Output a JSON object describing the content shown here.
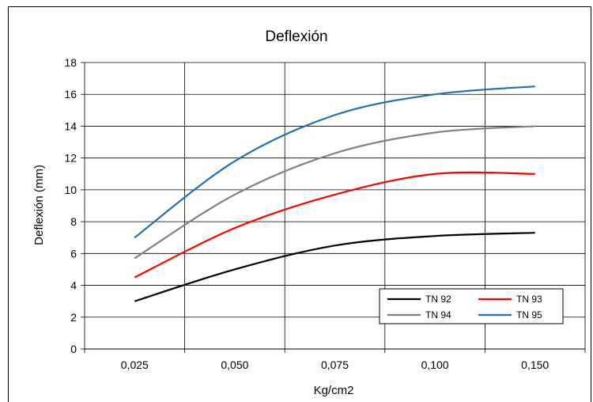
{
  "chart_data": {
    "type": "line",
    "title": "Deflexión",
    "xlabel": "Kg/cm2",
    "ylabel": "Deflexión (mm)",
    "x_ticks": [
      "0,025",
      "0,050",
      "0,075",
      "0,100",
      "0,150"
    ],
    "ylim": [
      0,
      18
    ],
    "y_ticks": [
      "0",
      "2",
      "4",
      "6",
      "8",
      "10",
      "12",
      "14",
      "16",
      "18"
    ],
    "grid": true,
    "legend_position": "bottom-right",
    "series": [
      {
        "name": "TN 92",
        "color": "#000000",
        "x": [
          "0,025",
          "0,050",
          "0,075",
          "0,100",
          "0,150"
        ],
        "values": [
          3.0,
          5.0,
          6.5,
          7.1,
          7.3
        ]
      },
      {
        "name": "TN 93",
        "color": "#ff0000",
        "x": [
          "0,025",
          "0,050",
          "0,075",
          "0,100",
          "0,150"
        ],
        "values": [
          4.5,
          7.6,
          9.7,
          11.0,
          11.0
        ]
      },
      {
        "name": "TN 94",
        "color": "#808080",
        "x": [
          "0,025",
          "0,050",
          "0,075",
          "0,100",
          "0,150"
        ],
        "values": [
          5.7,
          9.7,
          12.3,
          13.6,
          14.0
        ]
      },
      {
        "name": "TN 95",
        "color": "#1f6fb4",
        "x": [
          "0,025",
          "0,050",
          "0,075",
          "0,100",
          "0,150"
        ],
        "values": [
          7.0,
          11.8,
          14.7,
          16.0,
          16.5
        ]
      }
    ]
  }
}
